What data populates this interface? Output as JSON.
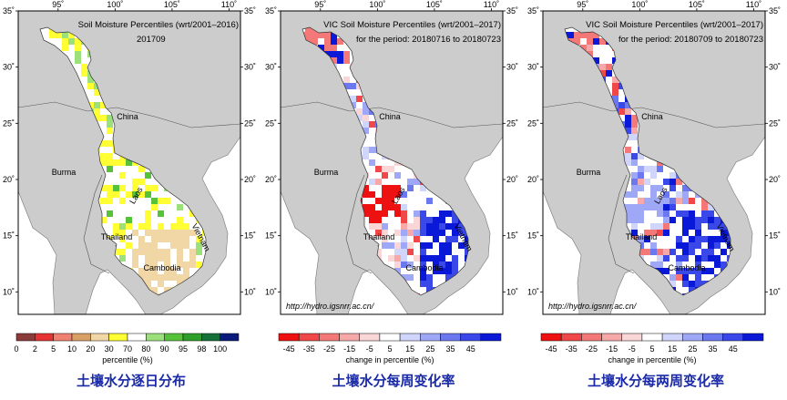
{
  "lon_ticks": [
    "95˚",
    "100˚",
    "105˚",
    "110˚"
  ],
  "lat_ticks": [
    "35˚",
    "30˚",
    "25˚",
    "20˚",
    "15˚",
    "10˚"
  ],
  "places": {
    "china": "China",
    "burma": "Burma",
    "thailand": "Thailand",
    "laos": "Laos",
    "vietnam": "Vietnam",
    "cambodia": "Cambodia"
  },
  "panels": [
    {
      "title_line1": "Soil Moisture Percentiles (wrt/2001–2016)",
      "title_line2": "201709",
      "url": "",
      "legend_ticks": [
        "0",
        "2",
        "5",
        "10",
        "20",
        "30",
        "70",
        "80",
        "90",
        "95",
        "98",
        "100"
      ],
      "legend_colors": [
        "#8c3b3b",
        "#e53333",
        "#f08070",
        "#d9a066",
        "#f2d7a6",
        "#ffff33",
        "#ffffff",
        "#9be07a",
        "#55c23a",
        "#2f9e2a",
        "#15703a",
        "#0a1a7a"
      ],
      "legend_label": "percentile (%)",
      "caption": "土壤水分逐日分布"
    },
    {
      "title_line1": "VIC Soil Moisture Percentiles (wrt/2001–2017)",
      "title_line2": "for the period: 20180716 to 20180723",
      "url": "http://hydro.igsnrr.ac.cn/",
      "legend_ticks": [
        "-45",
        "-35",
        "-25",
        "-15",
        "-5",
        "5",
        "15",
        "25",
        "35",
        "45"
      ],
      "legend_colors": [
        "#ee1111",
        "#f04848",
        "#f47878",
        "#f7a8a8",
        "#fbd6d6",
        "#ffffff",
        "#d0d6fb",
        "#9ea8f6",
        "#6c78f0",
        "#3a48ea",
        "#0a18d8"
      ],
      "legend_label": "change in percentile (%)",
      "caption": "土壤水分每周变化率"
    },
    {
      "title_line1": "VIC Soil Moisture Percentiles (wrt/2001–2017)",
      "title_line2": "for the period: 20180709 to 20180723",
      "url": "http://hydro.igsnrr.ac.cn/",
      "legend_ticks": [
        "-45",
        "-35",
        "-25",
        "-15",
        "-5",
        "5",
        "15",
        "25",
        "35",
        "45"
      ],
      "legend_colors": [
        "#ee1111",
        "#f04848",
        "#f47878",
        "#f7a8a8",
        "#fbd6d6",
        "#ffffff",
        "#d0d6fb",
        "#9ea8f6",
        "#6c78f0",
        "#3a48ea",
        "#0a18d8"
      ],
      "legend_label": "change in percentile (%)",
      "caption": "土壤水分每两周变化率"
    }
  ]
}
